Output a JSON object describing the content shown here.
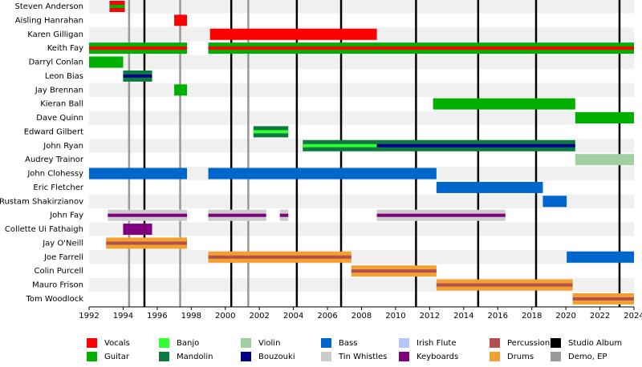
{
  "chart_data": {
    "type": "timeline",
    "xlim": [
      1992,
      2024
    ],
    "xticks": [
      1992,
      1994,
      1996,
      1998,
      2000,
      2002,
      2004,
      2006,
      2008,
      2010,
      2012,
      2014,
      2016,
      2018,
      2020,
      2022,
      2024
    ],
    "roles": [
      {
        "name": "Vocals",
        "color": "#ff0000"
      },
      {
        "name": "Guitar",
        "color": "#00b000"
      },
      {
        "name": "Banjo",
        "color": "#33ff33"
      },
      {
        "name": "Mandolin",
        "color": "#0b7a3f"
      },
      {
        "name": "Violin",
        "color": "#a0d0a0"
      },
      {
        "name": "Bouzouki",
        "color": "#00008b"
      },
      {
        "name": "Bass",
        "color": "#0066cc"
      },
      {
        "name": "Tin Whistles",
        "color": "#cccccc"
      },
      {
        "name": "Irish Flute",
        "color": "#b0c8ff"
      },
      {
        "name": "Keyboards",
        "color": "#800080"
      },
      {
        "name": "Percussion",
        "color": "#b05050"
      },
      {
        "name": "Drums",
        "color": "#f4a030"
      }
    ],
    "events": [
      {
        "name": "Studio Album",
        "color": "#000000",
        "years": [
          1995.25,
          2000.35,
          2004.2,
          2006.8,
          2011.2,
          2014.85,
          2018.25,
          2023.15
        ]
      },
      {
        "name": "Demo, EP",
        "color": "#999999",
        "years": [
          1994.35,
          1997.35,
          2001.35
        ]
      }
    ],
    "rows": [
      {
        "name": "Steven Anderson",
        "bars": [
          {
            "start": 1993.2,
            "end": 1994.1,
            "role": "Vocals",
            "stripe": "Guitar"
          }
        ]
      },
      {
        "name": "Aisling Hanrahan",
        "bars": [
          {
            "start": 1997.0,
            "end": 1997.75,
            "role": "Vocals"
          }
        ]
      },
      {
        "name": "Karen Gilligan",
        "bars": [
          {
            "start": 1999.1,
            "end": 2008.9,
            "role": "Vocals"
          }
        ]
      },
      {
        "name": "Keith Fay",
        "bars": [
          {
            "start": 1992.0,
            "end": 1997.75,
            "role": "Guitar",
            "stripe": "Vocals"
          },
          {
            "start": 1999.0,
            "end": 2024.0,
            "role": "Guitar",
            "stripe": "Vocals"
          }
        ]
      },
      {
        "name": "Darryl Conlan",
        "bars": [
          {
            "start": 1992.0,
            "end": 1994.0,
            "role": "Guitar"
          }
        ]
      },
      {
        "name": "Leon Bias",
        "bars": [
          {
            "start": 1994.0,
            "end": 1995.7,
            "role": "Mandolin",
            "stripe": "Bouzouki"
          }
        ]
      },
      {
        "name": "Jay Brennan",
        "bars": [
          {
            "start": 1997.0,
            "end": 1997.75,
            "role": "Guitar"
          }
        ]
      },
      {
        "name": "Kieran Ball",
        "bars": [
          {
            "start": 2012.2,
            "end": 2020.55,
            "role": "Guitar"
          }
        ]
      },
      {
        "name": "Dave Quinn",
        "bars": [
          {
            "start": 2020.55,
            "end": 2024.0,
            "role": "Guitar"
          }
        ]
      },
      {
        "name": "Edward Gilbert",
        "bars": [
          {
            "start": 2001.65,
            "end": 2003.7,
            "role": "Mandolin",
            "stripe": "Banjo"
          }
        ]
      },
      {
        "name": "John Ryan",
        "bars": [
          {
            "start": 2004.55,
            "end": 2008.9,
            "role": "Mandolin",
            "stripe": "Banjo"
          },
          {
            "start": 2008.9,
            "end": 2020.55,
            "role": "Mandolin",
            "stripe": "Bouzouki"
          }
        ]
      },
      {
        "name": "Audrey Trainor",
        "bars": [
          {
            "start": 2020.55,
            "end": 2024.0,
            "role": "Violin"
          }
        ]
      },
      {
        "name": "John Clohessy",
        "bars": [
          {
            "start": 1992.0,
            "end": 1997.75,
            "role": "Bass"
          },
          {
            "start": 1999.0,
            "end": 2012.4,
            "role": "Bass"
          }
        ]
      },
      {
        "name": "Eric Fletcher",
        "bars": [
          {
            "start": 2012.4,
            "end": 2018.65,
            "role": "Bass"
          }
        ]
      },
      {
        "name": "Rustam Shakirzianov",
        "bars": [
          {
            "start": 2018.65,
            "end": 2020.05,
            "role": "Bass"
          }
        ]
      },
      {
        "name": "John Fay",
        "bars": [
          {
            "start": 1993.1,
            "end": 1997.75,
            "role": "Tin Whistles",
            "stripe": "Keyboards"
          },
          {
            "start": 1999.0,
            "end": 2002.4,
            "role": "Tin Whistles",
            "stripe": "Keyboards"
          },
          {
            "start": 2003.2,
            "end": 2003.7,
            "role": "Tin Whistles",
            "stripe": "Keyboards"
          },
          {
            "start": 2008.9,
            "end": 2016.45,
            "role": "Tin Whistles",
            "stripe": "Keyboards"
          }
        ]
      },
      {
        "name": "Collette Ui Fathaigh",
        "bars": [
          {
            "start": 1994.0,
            "end": 1995.7,
            "role": "Keyboards"
          }
        ]
      },
      {
        "name": "Jay O'Neill",
        "bars": [
          {
            "start": 1993.0,
            "end": 1997.75,
            "role": "Drums",
            "stripe": "Percussion"
          }
        ]
      },
      {
        "name": "Joe Farrell",
        "bars": [
          {
            "start": 1999.0,
            "end": 2007.4,
            "role": "Drums",
            "stripe": "Percussion"
          },
          {
            "start": 2020.05,
            "end": 2024.0,
            "role": "Bass"
          }
        ]
      },
      {
        "name": "Colin Purcell",
        "bars": [
          {
            "start": 2007.4,
            "end": 2012.4,
            "role": "Drums",
            "stripe": "Percussion"
          }
        ]
      },
      {
        "name": "Mauro Frison",
        "bars": [
          {
            "start": 2012.4,
            "end": 2020.4,
            "role": "Drums",
            "stripe": "Percussion"
          }
        ]
      },
      {
        "name": "Tom Woodlock",
        "bars": [
          {
            "start": 2020.4,
            "end": 2024.0,
            "role": "Drums",
            "stripe": "Percussion"
          }
        ]
      }
    ]
  }
}
